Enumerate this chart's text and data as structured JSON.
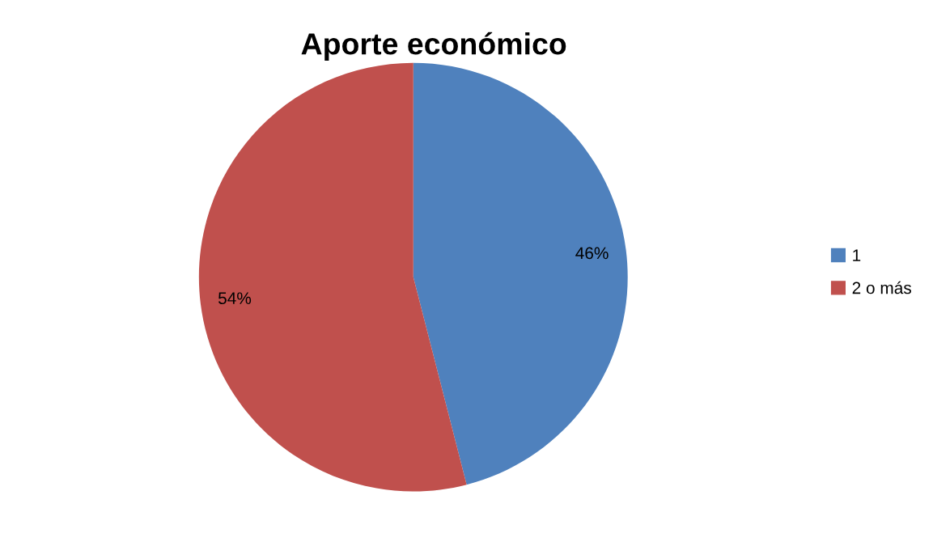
{
  "chart_data": {
    "type": "pie",
    "title": "Aporte económico",
    "categories": [
      "1",
      "2 o más"
    ],
    "values": [
      46,
      54
    ],
    "colors": [
      "#4f81bd",
      "#c0504d"
    ],
    "value_labels": [
      "46%",
      "54%"
    ],
    "legend": "right"
  }
}
